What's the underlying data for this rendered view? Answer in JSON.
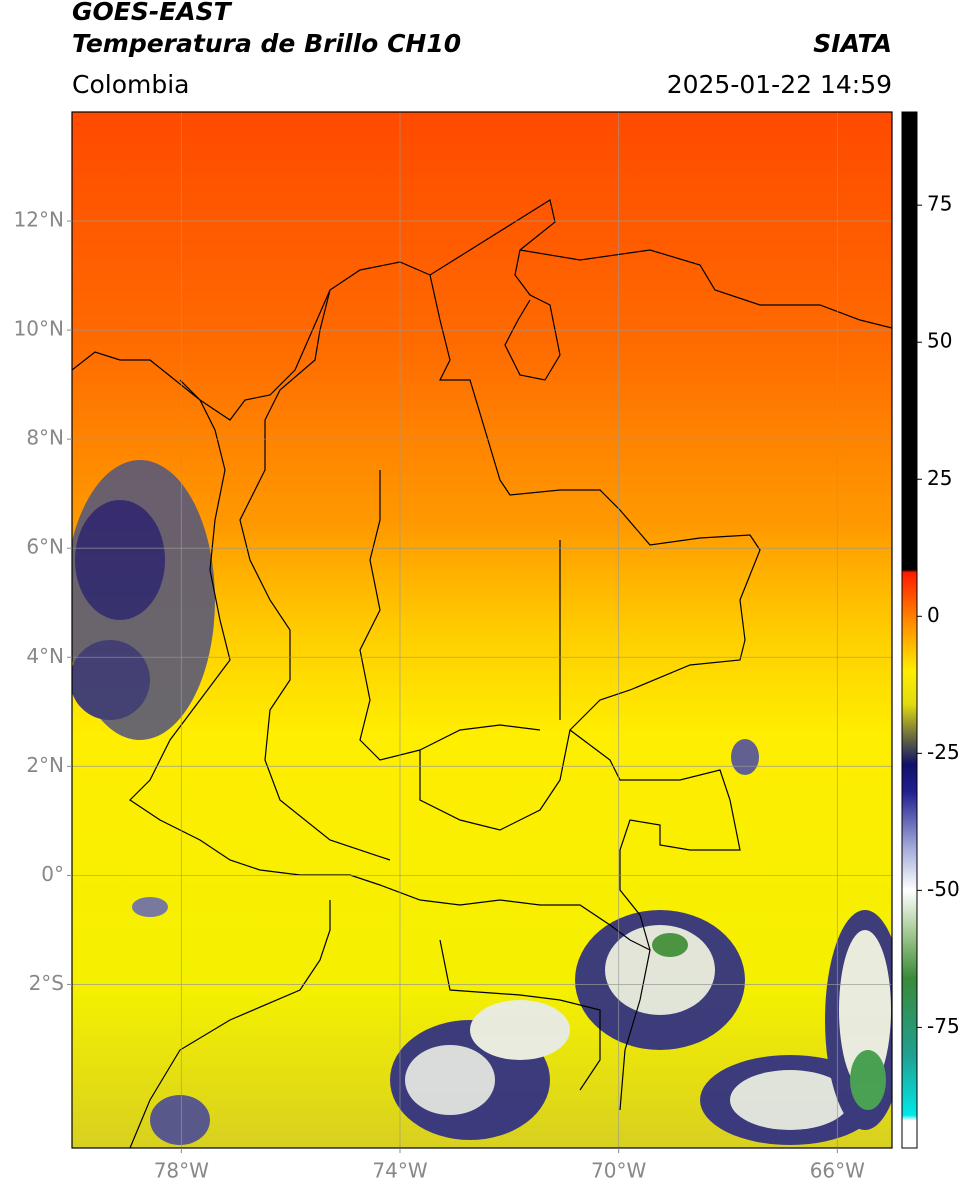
{
  "header": {
    "satellite": "GOES-EAST",
    "product": "Temperatura de Brillo CH10",
    "source": "SIATA",
    "region": "Colombia",
    "datetime": "2025-01-22 14:59"
  },
  "map": {
    "xlim": [
      -80,
      -65
    ],
    "ylim": [
      -5,
      14
    ],
    "xticks": [
      {
        "value": -78,
        "label": "78°W"
      },
      {
        "value": -74,
        "label": "74°W"
      },
      {
        "value": -70,
        "label": "70°W"
      },
      {
        "value": -66,
        "label": "66°W"
      }
    ],
    "yticks": [
      {
        "value": 12,
        "label": "12°N"
      },
      {
        "value": 10,
        "label": "10°N"
      },
      {
        "value": 8,
        "label": "8°N"
      },
      {
        "value": 6,
        "label": "6°N"
      },
      {
        "value": 4,
        "label": "4°N"
      },
      {
        "value": 2,
        "label": "2°N"
      },
      {
        "value": 0,
        "label": "0°"
      },
      {
        "value": -2,
        "label": "2°S"
      }
    ],
    "grid": true
  },
  "colorbar": {
    "clim": [
      -97,
      92
    ],
    "ticks": [
      75,
      50,
      25,
      0,
      -25,
      -50,
      -75
    ],
    "colormap": [
      {
        "value": 92,
        "color": "#000000"
      },
      {
        "value": 8.5,
        "color": "#000000"
      },
      {
        "value": 8,
        "color": "#ff1a00"
      },
      {
        "value": 0,
        "color": "#ff8000"
      },
      {
        "value": -10,
        "color": "#ffee00"
      },
      {
        "value": -16,
        "color": "#e0dc10"
      },
      {
        "value": -22,
        "color": "#6a6a40"
      },
      {
        "value": -27,
        "color": "#10106a"
      },
      {
        "value": -32,
        "color": "#202090"
      },
      {
        "value": -42,
        "color": "#a0a8d8"
      },
      {
        "value": -50,
        "color": "#ffffff"
      },
      {
        "value": -58,
        "color": "#a0c890"
      },
      {
        "value": -66,
        "color": "#3a8a3a"
      },
      {
        "value": -80,
        "color": "#20a090"
      },
      {
        "value": -91,
        "color": "#00e8e8"
      },
      {
        "value": -92,
        "color": "#ffffff"
      },
      {
        "value": -97,
        "color": "#ffffff"
      }
    ]
  }
}
